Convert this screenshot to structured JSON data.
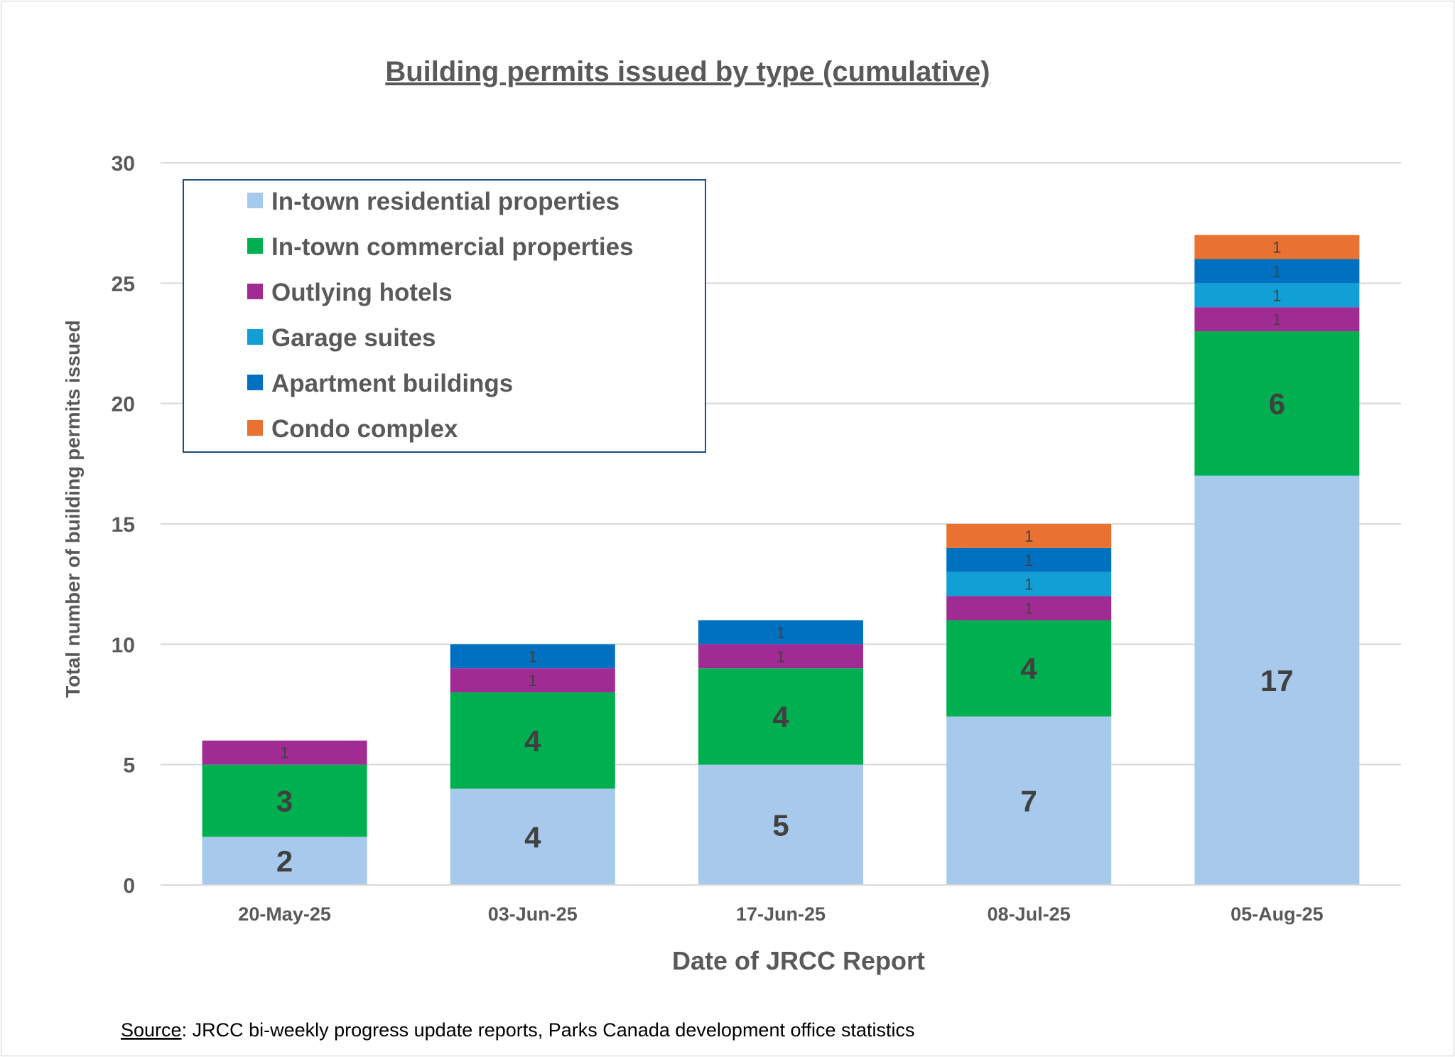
{
  "chart_data": {
    "type": "bar",
    "stacked": true,
    "title": "Building permits issued by type (cumulative)",
    "xlabel": "Date of JRCC Report",
    "ylabel": "Total number of building permits issued",
    "ylim": [
      0,
      30
    ],
    "yticks": [
      0,
      5,
      10,
      15,
      20,
      25,
      30
    ],
    "grid": true,
    "legend_position": "top-left",
    "categories": [
      "20-May-25",
      "03-Jun-25",
      "17-Jun-25",
      "08-Jul-25",
      "05-Aug-25"
    ],
    "series": [
      {
        "name": "In-town residential properties",
        "color": "#A7CAEC",
        "values": [
          2,
          4,
          5,
          7,
          17
        ]
      },
      {
        "name": "In-town commercial properties",
        "color": "#00B050",
        "values": [
          3,
          4,
          4,
          4,
          6
        ]
      },
      {
        "name": "Outlying hotels",
        "color": "#A02B93",
        "values": [
          1,
          1,
          1,
          1,
          1
        ]
      },
      {
        "name": "Garage suites",
        "color": "#129FD5",
        "values": [
          0,
          0,
          0,
          1,
          1
        ]
      },
      {
        "name": "Apartment buildings",
        "color": "#0070C0",
        "values": [
          0,
          1,
          1,
          1,
          1
        ]
      },
      {
        "name": "Condo complex",
        "color": "#E97132",
        "values": [
          0,
          0,
          0,
          1,
          1
        ]
      }
    ]
  },
  "source": {
    "label": "Source",
    "text": ": JRCC bi-weekly progress update reports, Parks Canada development office statistics"
  }
}
